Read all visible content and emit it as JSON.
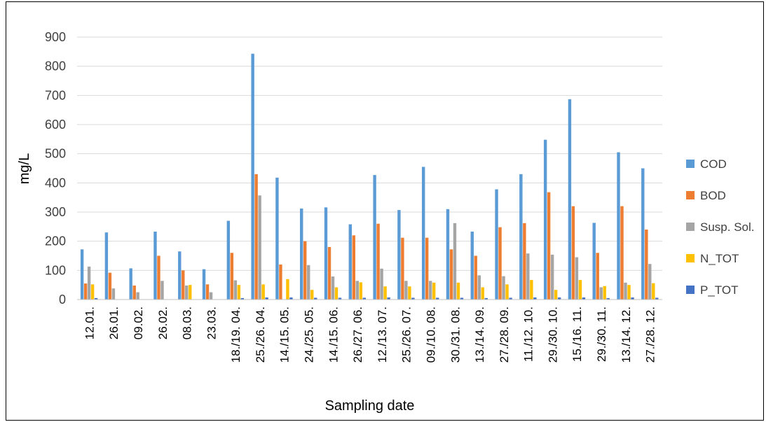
{
  "chart_data": {
    "type": "bar",
    "title": "",
    "xlabel": "Sampling date",
    "ylabel": "mg/L",
    "ylim": [
      0,
      900
    ],
    "yticks": [
      0,
      100,
      200,
      300,
      400,
      500,
      600,
      700,
      800,
      900
    ],
    "grid": true,
    "legend_position": "right",
    "categories": [
      "12.01.",
      "26.01.",
      "09.02.",
      "26.02.",
      "08.03.",
      "23.03.",
      "18./19. 04.",
      "25./26. 04.",
      "14./15. 05.",
      "24./25. 05.",
      "14./15. 06.",
      "26./27. 06.",
      "12./13. 07.",
      "25./26. 07.",
      "09./10. 08.",
      "30./31. 08.",
      "13./14. 09.",
      "27./28. 09.",
      "11./12. 10.",
      "29./30. 10.",
      "15./16. 11.",
      "29./30. 11.",
      "13./14. 12.",
      "27./28. 12."
    ],
    "series": [
      {
        "name": "COD",
        "color": "#5B9BD5",
        "values": [
          172,
          230,
          107,
          233,
          165,
          104,
          270,
          843,
          418,
          312,
          316,
          258,
          427,
          307,
          455,
          310,
          233,
          378,
          430,
          548,
          687,
          263,
          505,
          450
        ]
      },
      {
        "name": "BOD",
        "color": "#ED7D31",
        "values": [
          55,
          92,
          48,
          150,
          100,
          52,
          160,
          430,
          120,
          200,
          180,
          220,
          260,
          212,
          212,
          172,
          150,
          248,
          262,
          368,
          320,
          160,
          320,
          240
        ]
      },
      {
        "name": "Susp. Sol.",
        "color": "#A5A5A5",
        "values": [
          113,
          38,
          25,
          64,
          48,
          25,
          66,
          357,
          0,
          118,
          79,
          64,
          106,
          64,
          64,
          262,
          83,
          80,
          158,
          154,
          145,
          42,
          58,
          122
        ]
      },
      {
        "name": "N_TOT",
        "color": "#FFC000",
        "values": [
          52,
          0,
          0,
          0,
          50,
          0,
          50,
          52,
          70,
          33,
          42,
          59,
          45,
          45,
          58,
          58,
          42,
          52,
          67,
          33,
          67,
          46,
          50,
          56
        ]
      },
      {
        "name": "P_TOT",
        "color": "#4472C4",
        "values": [
          5,
          0,
          0,
          0,
          0,
          0,
          5,
          7,
          7,
          6,
          6,
          6,
          7,
          6,
          6,
          6,
          5,
          6,
          7,
          7,
          7,
          5,
          7,
          6
        ]
      }
    ]
  }
}
